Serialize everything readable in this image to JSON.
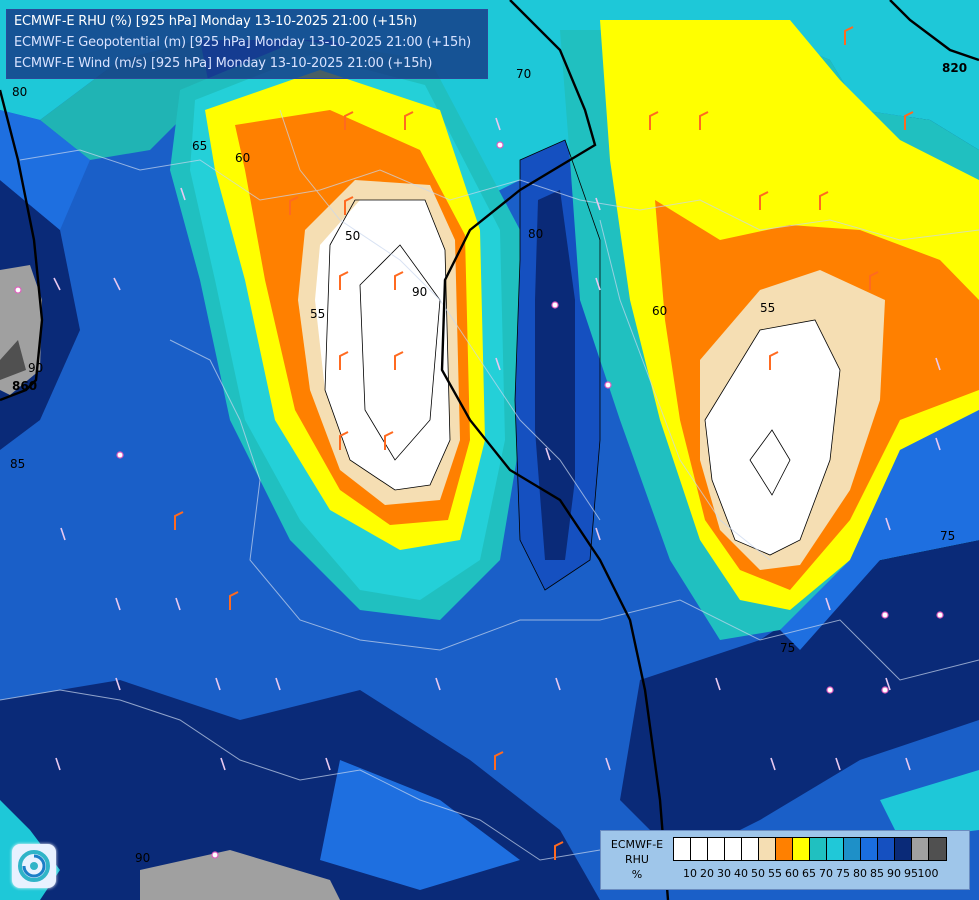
{
  "header": {
    "line1": "ECMWF-E RHU (%) [925 hPa] Monday 13-10-2025 21:00 (+15h)",
    "line2": "ECMWF-E Geopotential (m) [925 hPa] Monday 13-10-2025 21:00 (+15h)",
    "line3": "ECMWF-E Wind (m/s) [925 hPa] Monday 13-10-2025 21:00 (+15h)"
  },
  "legend": {
    "line1": "ECMWF-E",
    "line2": "RHU",
    "line3": "%",
    "ticks": [
      "10",
      "20",
      "30",
      "40",
      "50",
      "55",
      "60",
      "65",
      "70",
      "75",
      "80",
      "85",
      "90",
      "95",
      "100"
    ],
    "colors": [
      "#ffffff",
      "#ffffff",
      "#ffffff",
      "#ffffff",
      "#ffffff",
      "#f5deb3",
      "#ff8000",
      "#ffff00",
      "#20c0c0",
      "#20c8d8",
      "#1e90c8",
      "#1a6ee0",
      "#1550c0",
      "#0a2a78",
      "#a0a0a0",
      "#505050"
    ]
  },
  "contour_labels": [
    "80",
    "70",
    "820",
    "65",
    "60",
    "50",
    "55",
    "860",
    "90",
    "85",
    "80",
    "55",
    "60",
    "90",
    "75",
    "90",
    "75"
  ],
  "field_colors": {
    "white": "#ffffff",
    "wheat": "#f5deb3",
    "orange": "#ff8000",
    "yellow": "#ffff00",
    "teal": "#20c0c0",
    "cyan": "#1ec8d8",
    "mid_blue": "#1e6fe0",
    "blue": "#1a5fc8",
    "navy": "#0a2a78",
    "grey": "#a0a0a0",
    "dark_grey": "#505050"
  }
}
